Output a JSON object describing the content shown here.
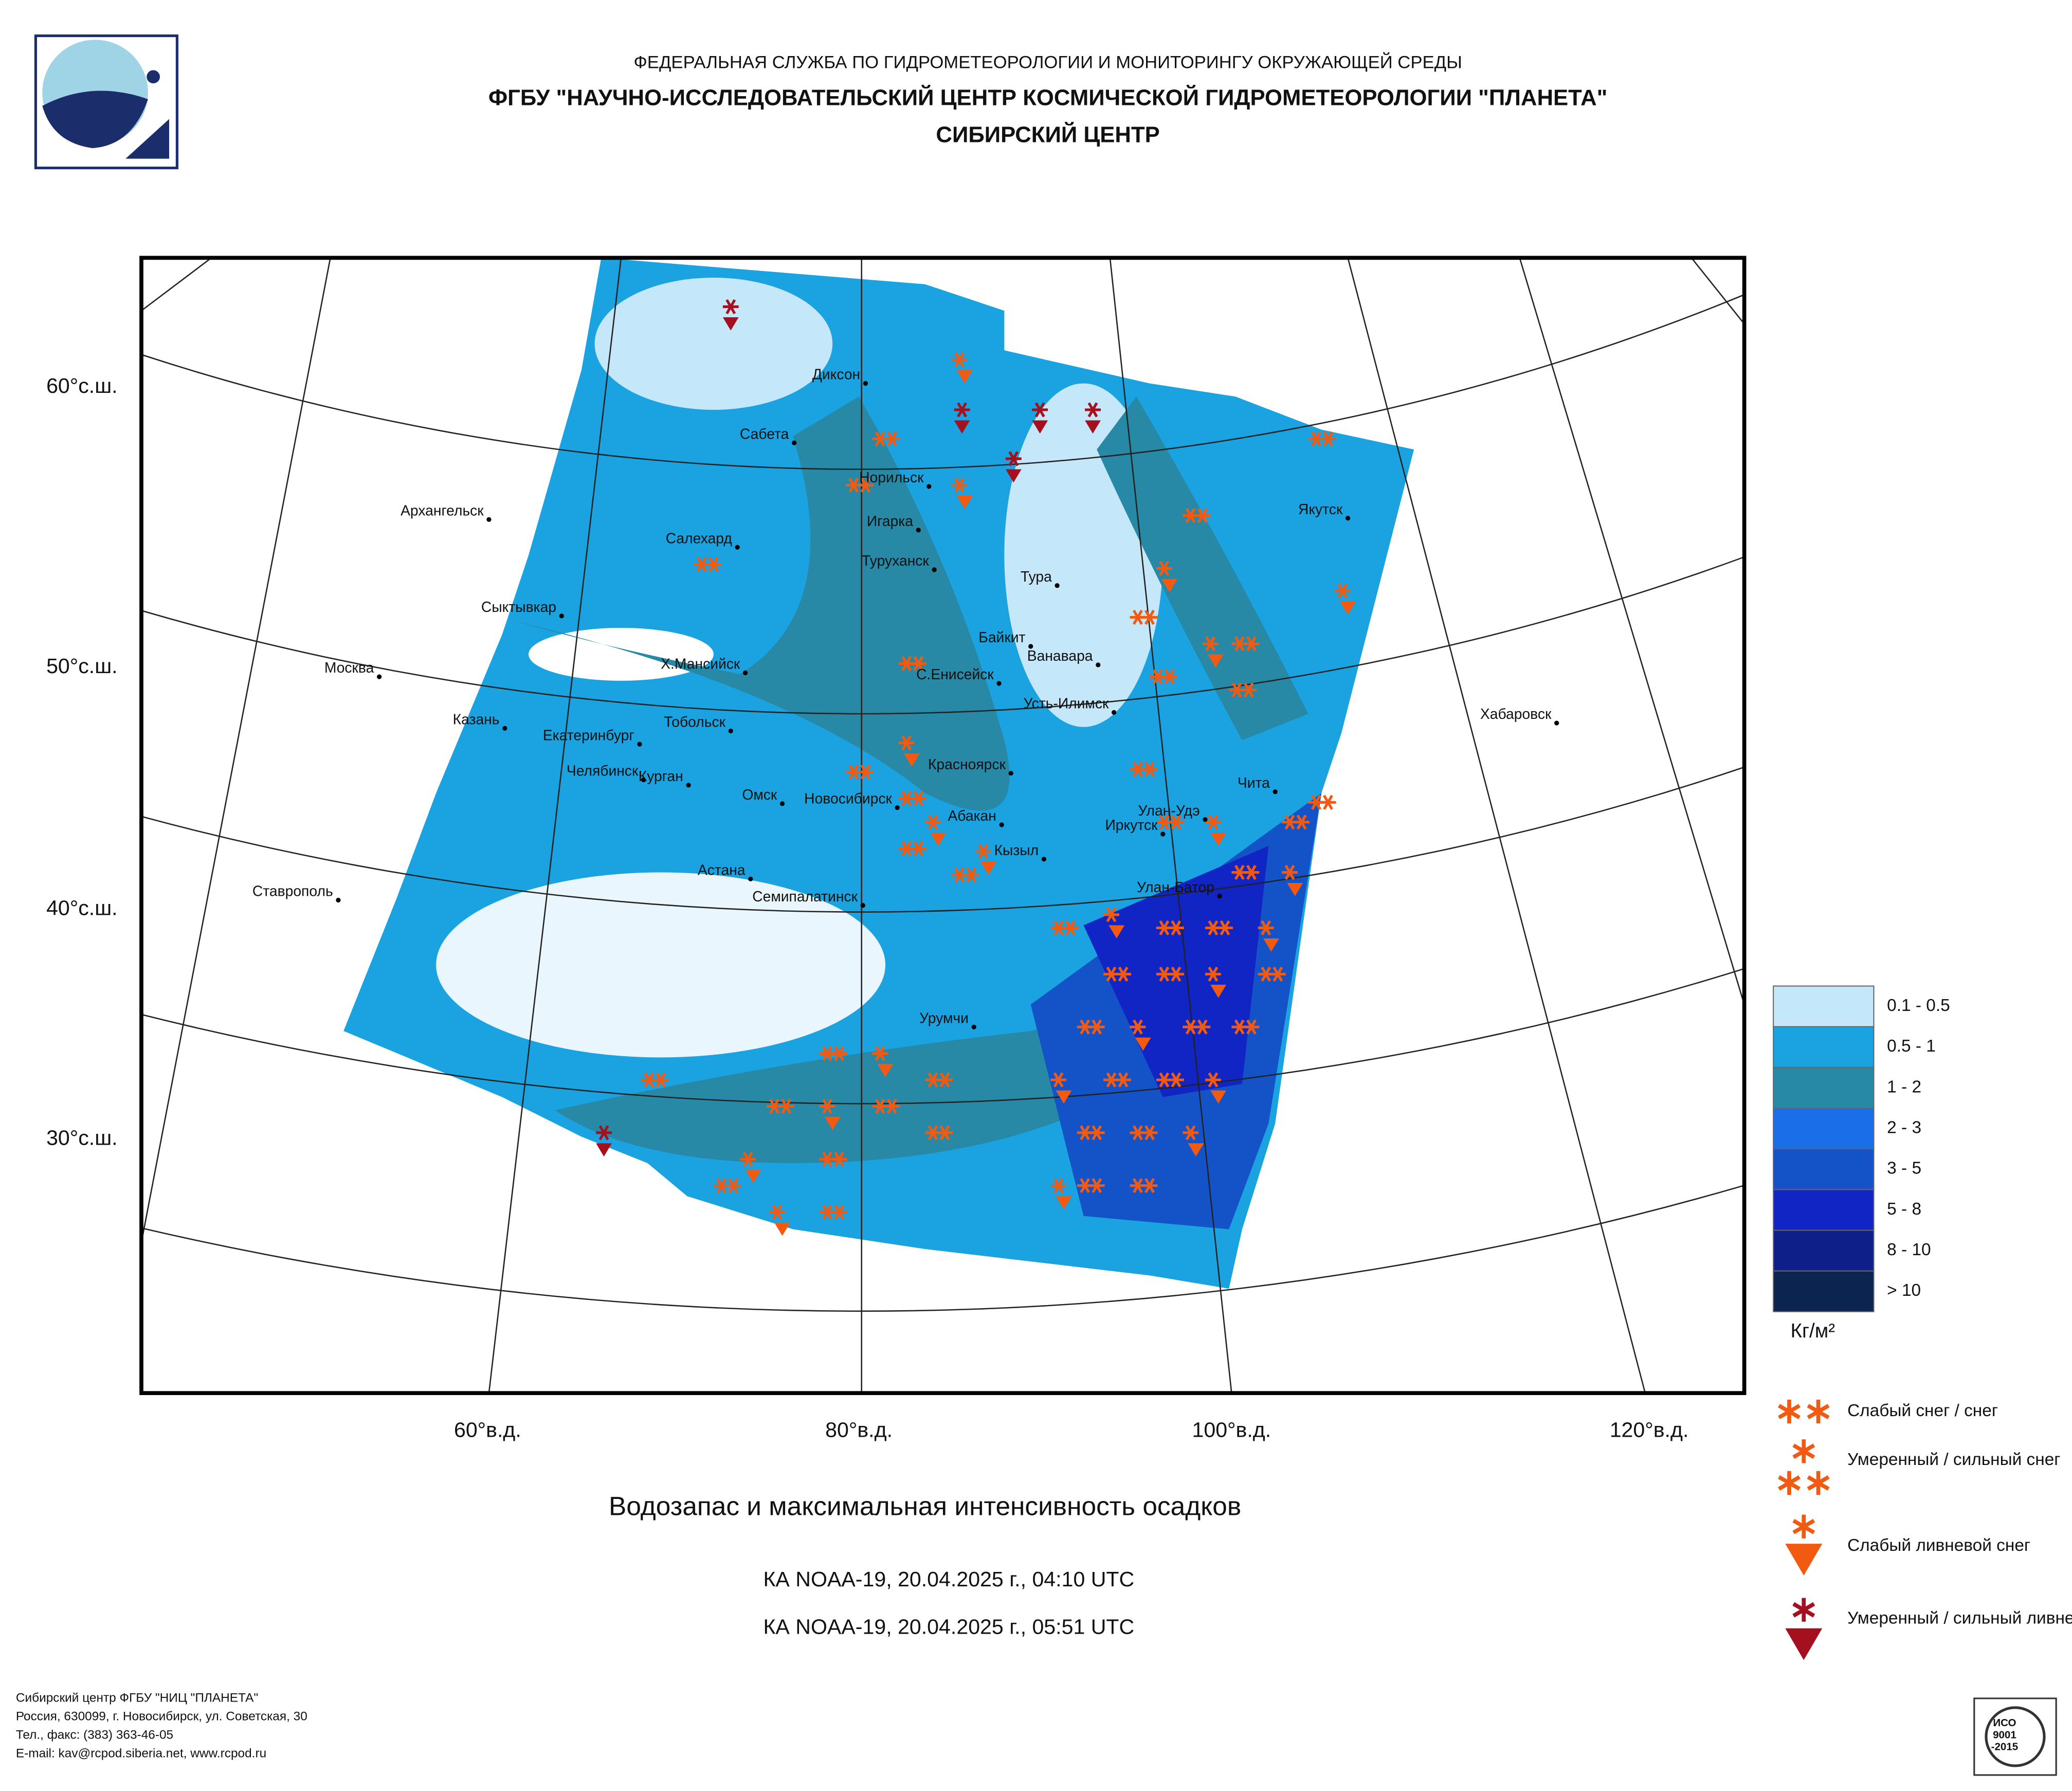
{
  "header": {
    "agency": "ФЕДЕРАЛЬНАЯ СЛУЖБА ПО ГИДРОМЕТЕОРОЛОГИИ И МОНИТОРИНГУ ОКРУЖАЮЩЕЙ СРЕДЫ",
    "institute": "ФГБУ \"НАУЧНО-ИССЛЕДОВАТЕЛЬСКИЙ ЦЕНТР КОСМИЧЕСКОЙ ГИДРОМЕТЕОРОЛОГИИ \"ПЛАНЕТА\"",
    "center": "СИБИРСКИЙ ЦЕНТР"
  },
  "map": {
    "lat_labels": [
      "60°с.ш.",
      "50°с.ш.",
      "40°с.ш.",
      "30°с.ш."
    ],
    "lon_labels": [
      "60°в.д.",
      "80°в.д.",
      "100°в.д.",
      "120°в.д."
    ],
    "cities": [
      "Диксон",
      "Сабета",
      "Норильск",
      "Игарка",
      "Салехард",
      "Туруханск",
      "Тура",
      "Архангельск",
      "Якутск",
      "Сыктывкар",
      "Байкит",
      "Ванавара",
      "Москва",
      "Х.Мансийск",
      "С.Енисейск",
      "Усть-Илимск",
      "Хабаровск",
      "Казань",
      "Екатеринбург",
      "Тобольск",
      "Красноярск",
      "Челябинск",
      "Курган",
      "Омск",
      "Новосибирск",
      "Чита",
      "Абакан",
      "Улан-Удэ",
      "Иркутск",
      "Кызыл",
      "Астана",
      "Улан-Батор",
      "Ставрополь",
      "Семипалатинск",
      "Урумчи"
    ]
  },
  "legend": {
    "items": [
      {
        "label": "0.1 - 0.5",
        "color": "#c4e8fa"
      },
      {
        "label": "0.5 - 1",
        "color": "#1aa3e0"
      },
      {
        "label": "1 - 2",
        "color": "#2789a6"
      },
      {
        "label": "2 - 3",
        "color": "#1a6ee8"
      },
      {
        "label": "3 - 5",
        "color": "#1452c8"
      },
      {
        "label": "5 - 8",
        "color": "#1124c4"
      },
      {
        "label": "8 - 10",
        "color": "#0e1f8a"
      },
      {
        "label": "> 10",
        "color": "#0c2450"
      }
    ],
    "unit": "Кг/м²",
    "symbols": [
      "Слабый снег / снег",
      "Умеренный / сильный снег",
      "Слабый ливневой снег",
      "Умеренный / сильный ливневой снег"
    ]
  },
  "title": "Водозапас и максимальная интенсивность осадков",
  "passes": [
    "КА NOAA-19, 20.04.2025 г., 04:10 UTC",
    "КА NOAA-19, 20.04.2025 г., 05:51 UTC"
  ],
  "footer": [
    "Сибирский центр ФГБУ \"НИЦ \"ПЛАНЕТА\"",
    "Россия, 630099, г. Новосибирск, ул. Советская, 30",
    "Тел., факс: (383) 363-46-05",
    "E-mail: kav@rcpod.siberia.net, www.rcpod.ru"
  ],
  "certificate": [
    "ИСО",
    "9001",
    "-2015"
  ]
}
